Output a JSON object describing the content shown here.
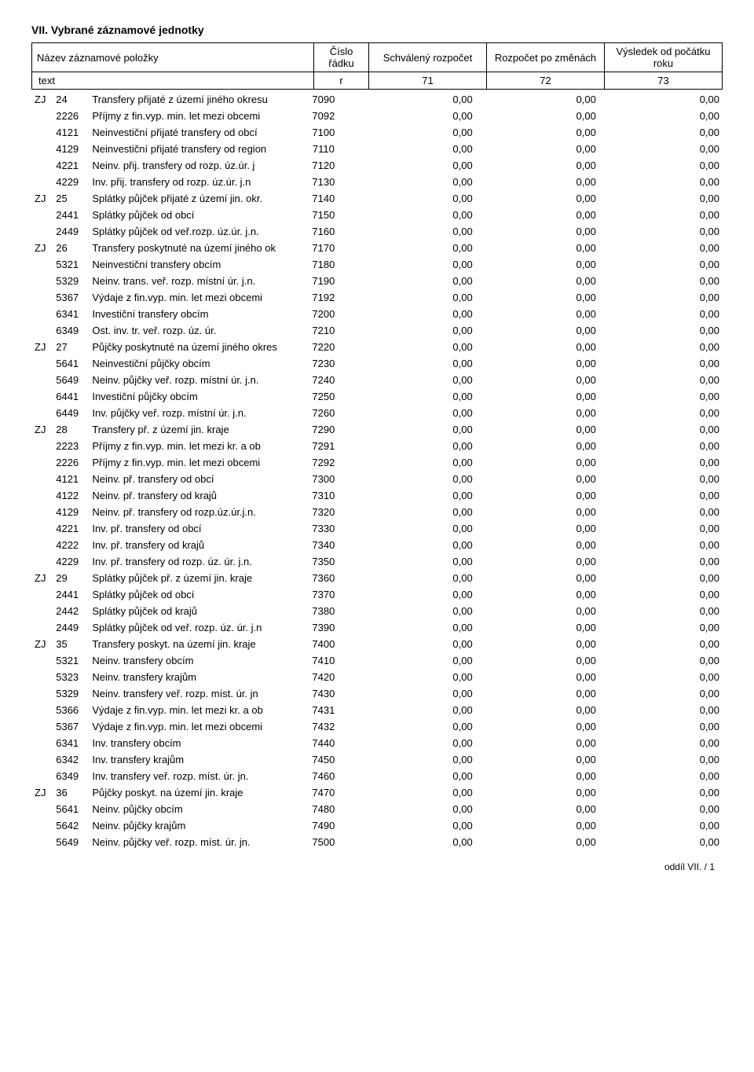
{
  "section_title": "VII. Vybrané záznamové jednotky",
  "header": {
    "name_label": "Název záznamové položky",
    "col_radek": "Číslo řádku",
    "col_schvaleny": "Schválený rozpočet",
    "col_pozmenach": "Rozpočet po změnách",
    "col_vysledek": "Výsledek od počátku roku",
    "sub_text": "text",
    "sub_r": "r",
    "sub_71": "71",
    "sub_72": "72",
    "sub_73": "73"
  },
  "rows": [
    {
      "zj": "ZJ",
      "code": "24",
      "name": "Transfery přijaté z území jiného okresu",
      "row": "7090",
      "v1": "0,00",
      "v2": "0,00",
      "v3": "0,00"
    },
    {
      "zj": "",
      "code": "2226",
      "name": "Příjmy z fin.vyp. min. let mezi obcemi",
      "row": "7092",
      "v1": "0,00",
      "v2": "0,00",
      "v3": "0,00"
    },
    {
      "zj": "",
      "code": "4121",
      "name": "Neinvestiční přijaté transfery od obcí",
      "row": "7100",
      "v1": "0,00",
      "v2": "0,00",
      "v3": "0,00"
    },
    {
      "zj": "",
      "code": "4129",
      "name": "Neinvestiční přijaté transfery od region",
      "row": "7110",
      "v1": "0,00",
      "v2": "0,00",
      "v3": "0,00"
    },
    {
      "zj": "",
      "code": "4221",
      "name": "Neinv. přij. transfery od rozp. úz.úr. j",
      "row": "7120",
      "v1": "0,00",
      "v2": "0,00",
      "v3": "0,00"
    },
    {
      "zj": "",
      "code": "4229",
      "name": "Inv. přij. transfery od rozp. úz.úr. j.n",
      "row": "7130",
      "v1": "0,00",
      "v2": "0,00",
      "v3": "0,00"
    },
    {
      "zj": "ZJ",
      "code": "25",
      "name": "Splátky půjček přijaté z území jin. okr.",
      "row": "7140",
      "v1": "0,00",
      "v2": "0,00",
      "v3": "0,00"
    },
    {
      "zj": "",
      "code": "2441",
      "name": "Splátky půjček od obcí",
      "row": "7150",
      "v1": "0,00",
      "v2": "0,00",
      "v3": "0,00"
    },
    {
      "zj": "",
      "code": "2449",
      "name": "Splátky půjček od veř.rozp. úz.úr. j.n.",
      "row": "7160",
      "v1": "0,00",
      "v2": "0,00",
      "v3": "0,00"
    },
    {
      "zj": "ZJ",
      "code": "26",
      "name": "Transfery poskytnuté na území jiného ok",
      "row": "7170",
      "v1": "0,00",
      "v2": "0,00",
      "v3": "0,00"
    },
    {
      "zj": "",
      "code": "5321",
      "name": "Neinvestiční transfery obcím",
      "row": "7180",
      "v1": "0,00",
      "v2": "0,00",
      "v3": "0,00"
    },
    {
      "zj": "",
      "code": "5329",
      "name": "Neinv. trans. veř. rozp. místní úr. j.n.",
      "row": "7190",
      "v1": "0,00",
      "v2": "0,00",
      "v3": "0,00"
    },
    {
      "zj": "",
      "code": "5367",
      "name": "Výdaje z fin.vyp. min. let mezi obcemi",
      "row": "7192",
      "v1": "0,00",
      "v2": "0,00",
      "v3": "0,00"
    },
    {
      "zj": "",
      "code": "6341",
      "name": "Investiční transfery obcím",
      "row": "7200",
      "v1": "0,00",
      "v2": "0,00",
      "v3": "0,00"
    },
    {
      "zj": "",
      "code": "6349",
      "name": "Ost. inv. tr. veř. rozp. úz. úr.",
      "row": "7210",
      "v1": "0,00",
      "v2": "0,00",
      "v3": "0,00"
    },
    {
      "zj": "ZJ",
      "code": "27",
      "name": "Půjčky poskytnuté na území jiného okres",
      "row": "7220",
      "v1": "0,00",
      "v2": "0,00",
      "v3": "0,00"
    },
    {
      "zj": "",
      "code": "5641",
      "name": "Neinvestiční půjčky obcím",
      "row": "7230",
      "v1": "0,00",
      "v2": "0,00",
      "v3": "0,00"
    },
    {
      "zj": "",
      "code": "5649",
      "name": "Neinv. půjčky veř. rozp. místní úr. j.n.",
      "row": "7240",
      "v1": "0,00",
      "v2": "0,00",
      "v3": "0,00"
    },
    {
      "zj": "",
      "code": "6441",
      "name": "Investiční půjčky obcím",
      "row": "7250",
      "v1": "0,00",
      "v2": "0,00",
      "v3": "0,00"
    },
    {
      "zj": "",
      "code": "6449",
      "name": "Inv. půjčky veř. rozp. místní úr. j.n.",
      "row": "7260",
      "v1": "0,00",
      "v2": "0,00",
      "v3": "0,00"
    },
    {
      "zj": "ZJ",
      "code": "28",
      "name": "Transfery př. z území jin. kraje",
      "row": "7290",
      "v1": "0,00",
      "v2": "0,00",
      "v3": "0,00"
    },
    {
      "zj": "",
      "code": "2223",
      "name": "Příjmy z fin.vyp. min. let mezi kr. a ob",
      "row": "7291",
      "v1": "0,00",
      "v2": "0,00",
      "v3": "0,00"
    },
    {
      "zj": "",
      "code": "2226",
      "name": "Příjmy z fin.vyp. min. let mezi obcemi",
      "row": "7292",
      "v1": "0,00",
      "v2": "0,00",
      "v3": "0,00"
    },
    {
      "zj": "",
      "code": "4121",
      "name": "Neinv. př. transfery od obcí",
      "row": "7300",
      "v1": "0,00",
      "v2": "0,00",
      "v3": "0,00"
    },
    {
      "zj": "",
      "code": "4122",
      "name": "Neinv. př. transfery od krajů",
      "row": "7310",
      "v1": "0,00",
      "v2": "0,00",
      "v3": "0,00"
    },
    {
      "zj": "",
      "code": "4129",
      "name": "Neinv. př. transfery od rozp.úz.úr.j.n.",
      "row": "7320",
      "v1": "0,00",
      "v2": "0,00",
      "v3": "0,00"
    },
    {
      "zj": "",
      "code": "4221",
      "name": "Inv. př. transfery od obcí",
      "row": "7330",
      "v1": "0,00",
      "v2": "0,00",
      "v3": "0,00"
    },
    {
      "zj": "",
      "code": "4222",
      "name": "Inv. př. transfery od krajů",
      "row": "7340",
      "v1": "0,00",
      "v2": "0,00",
      "v3": "0,00"
    },
    {
      "zj": "",
      "code": "4229",
      "name": "Inv. př. transfery od rozp. úz. úr. j.n.",
      "row": "7350",
      "v1": "0,00",
      "v2": "0,00",
      "v3": "0,00"
    },
    {
      "zj": "ZJ",
      "code": "29",
      "name": "Splátky půjček př. z území jin. kraje",
      "row": "7360",
      "v1": "0,00",
      "v2": "0,00",
      "v3": "0,00"
    },
    {
      "zj": "",
      "code": "2441",
      "name": "Splátky půjček od obcí",
      "row": "7370",
      "v1": "0,00",
      "v2": "0,00",
      "v3": "0,00"
    },
    {
      "zj": "",
      "code": "2442",
      "name": "Splátky půjček od krajů",
      "row": "7380",
      "v1": "0,00",
      "v2": "0,00",
      "v3": "0,00"
    },
    {
      "zj": "",
      "code": "2449",
      "name": "Splátky půjček od veř. rozp. úz. úr. j.n",
      "row": "7390",
      "v1": "0,00",
      "v2": "0,00",
      "v3": "0,00"
    },
    {
      "zj": "ZJ",
      "code": "35",
      "name": "Transfery poskyt. na území jin. kraje",
      "row": "7400",
      "v1": "0,00",
      "v2": "0,00",
      "v3": "0,00"
    },
    {
      "zj": "",
      "code": "5321",
      "name": "Neinv. transfery obcím",
      "row": "7410",
      "v1": "0,00",
      "v2": "0,00",
      "v3": "0,00"
    },
    {
      "zj": "",
      "code": "5323",
      "name": "Neinv. transfery krajům",
      "row": "7420",
      "v1": "0,00",
      "v2": "0,00",
      "v3": "0,00"
    },
    {
      "zj": "",
      "code": "5329",
      "name": "Neinv. transfery veř. rozp. míst. úr. jn",
      "row": "7430",
      "v1": "0,00",
      "v2": "0,00",
      "v3": "0,00"
    },
    {
      "zj": "",
      "code": "5366",
      "name": "Výdaje z fin.vyp. min. let mezi kr. a ob",
      "row": "7431",
      "v1": "0,00",
      "v2": "0,00",
      "v3": "0,00"
    },
    {
      "zj": "",
      "code": "5367",
      "name": "Výdaje z fin.vyp. min. let mezi obcemi",
      "row": "7432",
      "v1": "0,00",
      "v2": "0,00",
      "v3": "0,00"
    },
    {
      "zj": "",
      "code": "6341",
      "name": "Inv. transfery obcím",
      "row": "7440",
      "v1": "0,00",
      "v2": "0,00",
      "v3": "0,00"
    },
    {
      "zj": "",
      "code": "6342",
      "name": "Inv. transfery krajům",
      "row": "7450",
      "v1": "0,00",
      "v2": "0,00",
      "v3": "0,00"
    },
    {
      "zj": "",
      "code": "6349",
      "name": "Inv. transfery veř. rozp. míst. úr. jn.",
      "row": "7460",
      "v1": "0,00",
      "v2": "0,00",
      "v3": "0,00"
    },
    {
      "zj": "ZJ",
      "code": "36",
      "name": "Půjčky poskyt. na území jin. kraje",
      "row": "7470",
      "v1": "0,00",
      "v2": "0,00",
      "v3": "0,00"
    },
    {
      "zj": "",
      "code": "5641",
      "name": "Neinv. půjčky obcím",
      "row": "7480",
      "v1": "0,00",
      "v2": "0,00",
      "v3": "0,00"
    },
    {
      "zj": "",
      "code": "5642",
      "name": "Neinv. půjčky krajům",
      "row": "7490",
      "v1": "0,00",
      "v2": "0,00",
      "v3": "0,00"
    },
    {
      "zj": "",
      "code": "5649",
      "name": "Neinv. půjčky veř. rozp. míst. úr. jn.",
      "row": "7500",
      "v1": "0,00",
      "v2": "0,00",
      "v3": "0,00"
    }
  ],
  "footer": "oddíl VII.  /  1"
}
